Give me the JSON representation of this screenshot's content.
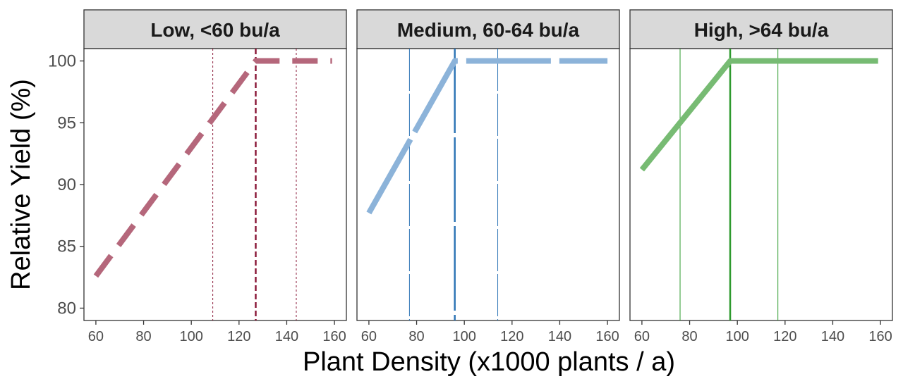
{
  "chart_data": {
    "type": "line",
    "xlabel": "Plant Density (x1000 plants / a)",
    "ylabel": "Relative Yield (%)",
    "xlim": [
      55,
      165
    ],
    "ylim": [
      79,
      101
    ],
    "x_ticks": [
      60,
      80,
      100,
      120,
      140,
      160
    ],
    "y_ticks": [
      80,
      85,
      90,
      95,
      100
    ],
    "grid": false,
    "panels": [
      {
        "label": "Low, <60 bu/a",
        "color": "#b5677b",
        "ref_color": "#8b1a3a",
        "line_style": "dashed-long",
        "ref_style": "dashed",
        "x": [
          60,
          127,
          159
        ],
        "y": [
          82.6,
          100,
          100
        ],
        "optimum": 127,
        "ci": [
          109,
          144
        ]
      },
      {
        "label": "Medium, 60-64 bu/a",
        "color": "#8cb3d9",
        "ref_color": "#2e75b6",
        "line_style": "longdash",
        "ref_style": "longdash",
        "x": [
          60,
          96,
          160
        ],
        "y": [
          87.7,
          100,
          100
        ],
        "optimum": 96,
        "ci": [
          77,
          114
        ]
      },
      {
        "label": "High, >64 bu/a",
        "color": "#77bb73",
        "ref_color": "#2e9a2e",
        "line_style": "solid",
        "ref_style": "solid",
        "x": [
          60,
          97,
          159
        ],
        "y": [
          91.2,
          100,
          100
        ],
        "optimum": 97,
        "ci": [
          76,
          117
        ]
      }
    ]
  }
}
